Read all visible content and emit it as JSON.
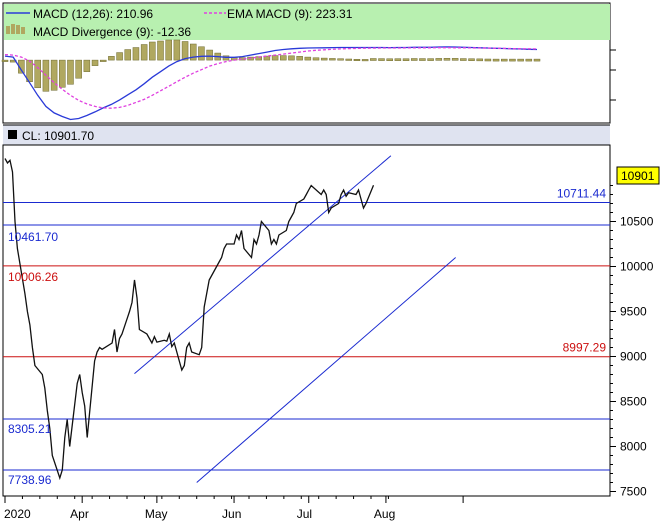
{
  "colors": {
    "frame": "#000000",
    "grid_tick": "#000000",
    "legend_bg": "#b8f0b0",
    "cl_bar_bg": "#dfe3f0",
    "macd_line": "#2a3ad8",
    "ema_line": "#e040e0",
    "histogram_fill": "#b0a860",
    "histogram_stroke": "#6e6a30",
    "price_line": "#111111",
    "channel_line": "#1a2ad0",
    "blue_level": "#1a2ad0",
    "red_level": "#cc1010",
    "last_price_tag_bg": "#ffff00",
    "blue_label_text": "#1a2ad0",
    "red_label_text": "#cc1010"
  },
  "macd_panel": {
    "legend": {
      "macd_label": "MACD (12,26): 210.96",
      "ema_label": "EMA MACD (9): 223.31",
      "divergence_label": "MACD Divergence (9): -12.36"
    },
    "macd_values": [
      80,
      60,
      -200,
      -450,
      -700,
      -920,
      -1050,
      -1120,
      -1180,
      -1160,
      -1100,
      -1030,
      -950,
      -880,
      -790,
      -690,
      -590,
      -470,
      -340,
      -230,
      -120,
      -30,
      30,
      60,
      75,
      80,
      70,
      55,
      55,
      70,
      100,
      130,
      160,
      190,
      210,
      225,
      235,
      240,
      242,
      245,
      248,
      250,
      250,
      250,
      250,
      250,
      250,
      248,
      250,
      250,
      255,
      255,
      255,
      260,
      262,
      260,
      255,
      250,
      245,
      240,
      235,
      230,
      225,
      220,
      215,
      211
    ],
    "ema_values": [
      110,
      100,
      60,
      -20,
      -150,
      -300,
      -450,
      -580,
      -700,
      -800,
      -870,
      -920,
      -950,
      -955,
      -940,
      -900,
      -840,
      -780,
      -700,
      -610,
      -520,
      -430,
      -340,
      -260,
      -190,
      -120,
      -70,
      -30,
      0,
      20,
      40,
      60,
      80,
      100,
      120,
      140,
      160,
      180,
      195,
      205,
      215,
      222,
      228,
      233,
      236,
      238,
      240,
      241,
      241,
      242,
      243,
      244,
      245,
      246,
      246,
      245,
      244,
      242,
      240,
      238,
      235,
      232,
      229,
      226,
      224,
      223
    ],
    "histogram_values": [
      -30,
      -40,
      -260,
      -430,
      -550,
      -620,
      -600,
      -540,
      -480,
      -360,
      -230,
      -110,
      0,
      75,
      150,
      210,
      250,
      310,
      360,
      380,
      400,
      400,
      370,
      320,
      265,
      200,
      140,
      85,
      55,
      50,
      60,
      70,
      80,
      90,
      90,
      85,
      75,
      60,
      47,
      40,
      33,
      28,
      22,
      17,
      14,
      12,
      10,
      7,
      9,
      8,
      12,
      11,
      10,
      14,
      16,
      15,
      11,
      8,
      5,
      2,
      0,
      -2,
      -4,
      -6,
      -9,
      -12
    ]
  },
  "price_panel": {
    "cl_label": "CL: 10901.70",
    "last_price": "10901",
    "right_labels": [
      {
        "text": "10711.44",
        "kind": "blue",
        "level": 10711.44
      },
      {
        "text": "8997.29",
        "kind": "red",
        "level": 8997.29
      }
    ],
    "left_labels": [
      {
        "text": "10461.70",
        "kind": "blue",
        "level": 10461.7
      },
      {
        "text": "10006.26",
        "kind": "red",
        "level": 10006.26
      },
      {
        "text": "8305.21",
        "kind": "blue",
        "level": 8305.21
      },
      {
        "text": "7738.96",
        "kind": "blue",
        "level": 7738.96
      }
    ],
    "horizontal_levels": [
      {
        "value": 10711.44,
        "kind": "blue"
      },
      {
        "value": 10461.7,
        "kind": "blue"
      },
      {
        "value": 10006.26,
        "kind": "red"
      },
      {
        "value": 8997.29,
        "kind": "red"
      },
      {
        "value": 8305.21,
        "kind": "blue"
      },
      {
        "value": 7738.96,
        "kind": "blue"
      }
    ],
    "channel_lines": [
      {
        "name": "upper-channel",
        "from": {
          "day": 53,
          "value": 8810
        },
        "to": {
          "day": 156,
          "value": 11230
        }
      },
      {
        "name": "lower-channel",
        "from": {
          "day": 78,
          "value": 7600
        },
        "to": {
          "day": 182,
          "value": 10100
        }
      }
    ]
  },
  "chart_data": {
    "type": "line",
    "title": "",
    "xlabel": "",
    "ylabel": "",
    "x_ticks": [
      "2020",
      "Apr",
      "May",
      "Jun",
      "Jul",
      "Aug"
    ],
    "y_ticks": [
      "10500",
      "10000",
      "9500",
      "9000",
      "8500",
      "8000",
      "7500"
    ],
    "ylim": [
      7450,
      11350
    ],
    "xlim": [
      1,
      244
    ],
    "grid": false,
    "series": [
      {
        "x": [
          "2020-03-01",
          "2020-03-02",
          "2020-03-03",
          "2020-03-04",
          "2020-03-05",
          "2020-03-06",
          "2020-03-09",
          "2020-03-10",
          "2020-03-11",
          "2020-03-12",
          "2020-03-13",
          "2020-03-16",
          "2020-03-17",
          "2020-03-18",
          "2020-03-19",
          "2020-03-20",
          "2020-03-23",
          "2020-03-24",
          "2020-03-25",
          "2020-03-26",
          "2020-03-27",
          "2020-03-30",
          "2020-03-31",
          "2020-04-01",
          "2020-04-02",
          "2020-04-03",
          "2020-04-06",
          "2020-04-07",
          "2020-04-08",
          "2020-04-09",
          "2020-04-13",
          "2020-04-14",
          "2020-04-15",
          "2020-04-16",
          "2020-04-17",
          "2020-04-20",
          "2020-04-21",
          "2020-04-22",
          "2020-04-23",
          "2020-04-24",
          "2020-04-27",
          "2020-04-28",
          "2020-04-29",
          "2020-04-30",
          "2020-05-01",
          "2020-05-04",
          "2020-05-05",
          "2020-05-06",
          "2020-05-07",
          "2020-05-08",
          "2020-05-11",
          "2020-05-12",
          "2020-05-13",
          "2020-05-14",
          "2020-05-15",
          "2020-05-18",
          "2020-05-19",
          "2020-05-20",
          "2020-05-21",
          "2020-05-22",
          "2020-05-26",
          "2020-05-27",
          "2020-05-28",
          "2020-05-29",
          "2020-06-01",
          "2020-06-02",
          "2020-06-03",
          "2020-06-04",
          "2020-06-05",
          "2020-06-08",
          "2020-06-09",
          "2020-06-10",
          "2020-06-11",
          "2020-06-12",
          "2020-06-15",
          "2020-06-16",
          "2020-06-17",
          "2020-06-18",
          "2020-06-19",
          "2020-06-22",
          "2020-06-23",
          "2020-06-24",
          "2020-06-25",
          "2020-06-26",
          "2020-06-29",
          "2020-06-30",
          "2020-07-01",
          "2020-07-02",
          "2020-07-06",
          "2020-07-07",
          "2020-07-08",
          "2020-07-09",
          "2020-07-10",
          "2020-07-13",
          "2020-07-14",
          "2020-07-15",
          "2020-07-16",
          "2020-07-17",
          "2020-07-20",
          "2020-07-21",
          "2020-07-22",
          "2020-07-23",
          "2020-07-24",
          "2020-07-27"
        ],
        "x_days": [
          1,
          2,
          3,
          4,
          5,
          6,
          9,
          10,
          11,
          12,
          13,
          16,
          17,
          18,
          19,
          20,
          23,
          24,
          25,
          26,
          27,
          30,
          31,
          32,
          33,
          34,
          37,
          38,
          39,
          40,
          44,
          45,
          46,
          47,
          48,
          51,
          52,
          53,
          54,
          55,
          58,
          59,
          60,
          61,
          62,
          65,
          66,
          67,
          68,
          69,
          72,
          73,
          74,
          75,
          76,
          79,
          80,
          81,
          82,
          83,
          87,
          88,
          89,
          90,
          93,
          94,
          95,
          96,
          97,
          100,
          101,
          102,
          103,
          104,
          107,
          108,
          109,
          110,
          111,
          114,
          115,
          116,
          117,
          118,
          121,
          122,
          123,
          124,
          128,
          129,
          130,
          131,
          132,
          135,
          136,
          137,
          138,
          139,
          142,
          143,
          144,
          145,
          146,
          149
        ],
        "y": [
          11200,
          11150,
          11180,
          11050,
          10500,
          10200,
          9700,
          9500,
          9350,
          9100,
          8900,
          8800,
          8650,
          8400,
          8200,
          7900,
          7650,
          7740,
          8100,
          8300,
          8000,
          8700,
          8800,
          8600,
          8450,
          8100,
          8950,
          9050,
          9100,
          9080,
          9150,
          9300,
          9050,
          9200,
          9250,
          9500,
          9600,
          9850,
          9650,
          9300,
          9250,
          9200,
          9150,
          9220,
          9160,
          9180,
          9170,
          9250,
          9110,
          9150,
          8850,
          8900,
          9100,
          9150,
          9050,
          9020,
          9100,
          9550,
          9700,
          9850,
          10050,
          10100,
          10200,
          10250,
          10250,
          10350,
          10300,
          10400,
          10200,
          10100,
          10300,
          10250,
          10350,
          10500,
          10400,
          10250,
          10300,
          10250,
          10350,
          10400,
          10500,
          10550,
          10600,
          10700,
          10750,
          10800,
          10850,
          10900,
          10800,
          10850,
          10800,
          10600,
          10650,
          10700,
          10800,
          10850,
          10780,
          10820,
          10800,
          10850,
          10750,
          10650,
          10700,
          10902
        ]
      }
    ]
  }
}
